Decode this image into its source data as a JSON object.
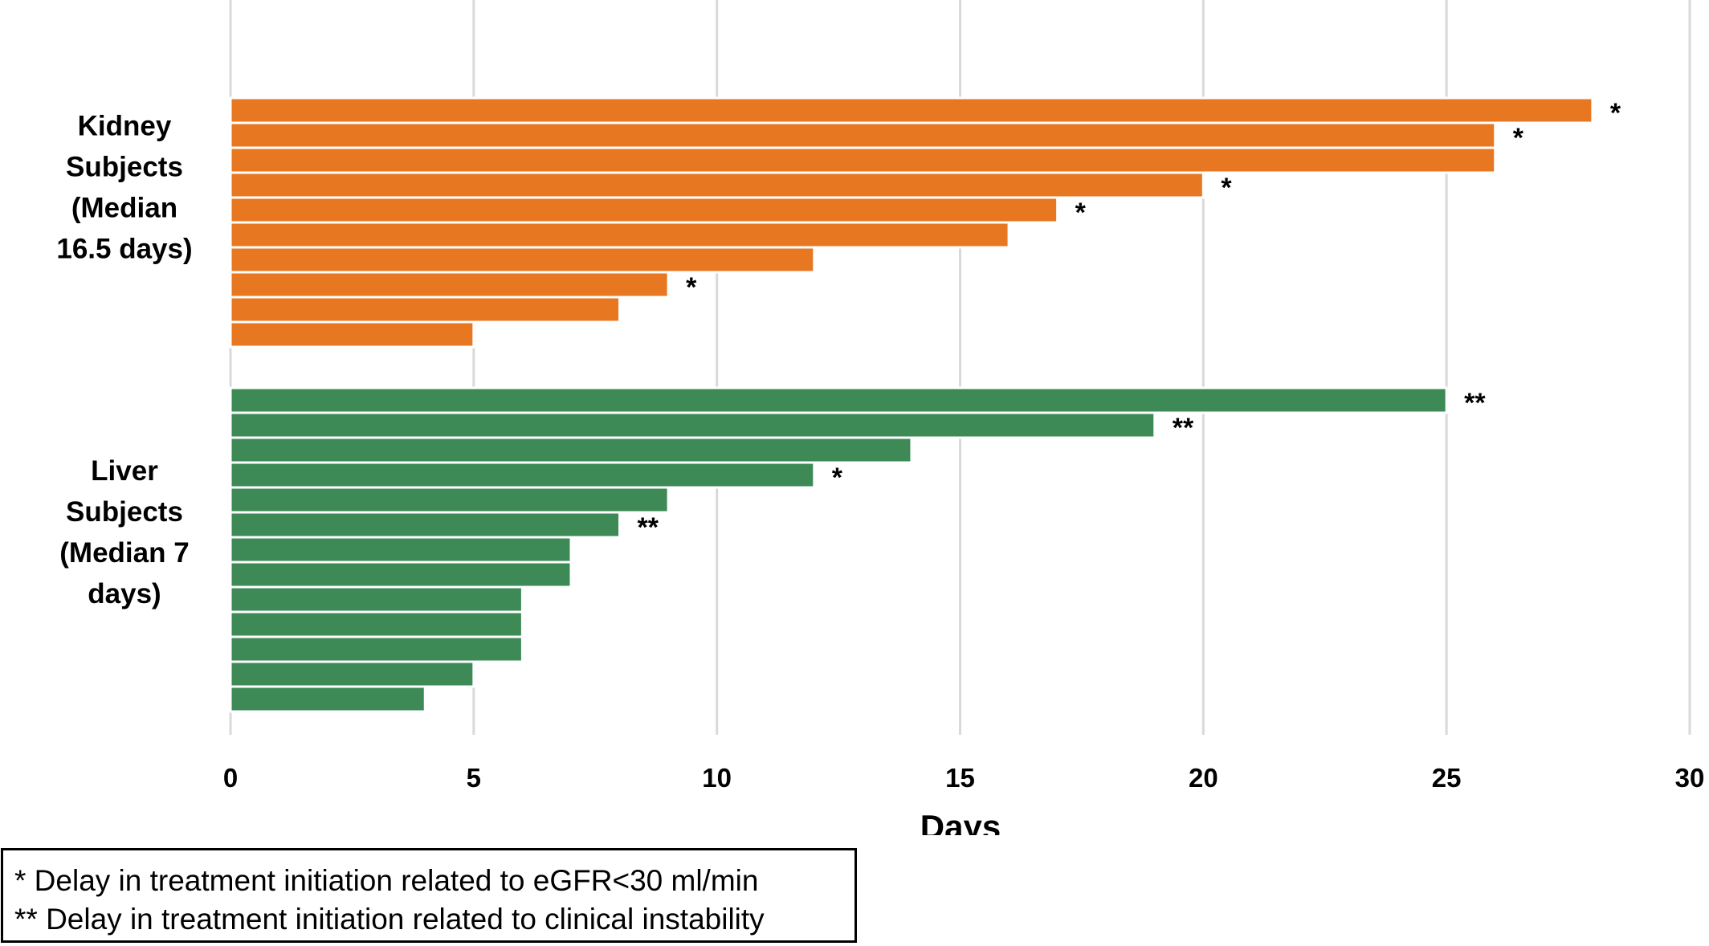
{
  "chart_data": {
    "type": "bar",
    "orientation": "horizontal",
    "xlabel": "Days",
    "xlim": [
      0,
      30
    ],
    "xticks": [
      0,
      5,
      10,
      15,
      20,
      25,
      30
    ],
    "grid": "vertical",
    "groups": [
      {
        "label_lines": [
          "Kidney",
          "Subjects",
          "(Median",
          "16.5 days)"
        ],
        "color": "#E87722",
        "values": [
          28,
          26,
          26,
          20,
          17,
          16,
          12,
          9,
          8,
          5
        ],
        "annotations": [
          "*",
          "*",
          "",
          "*",
          "*",
          "",
          "",
          "*",
          "",
          ""
        ]
      },
      {
        "label_lines": [
          "Liver",
          "Subjects",
          "(Median 7",
          "days)"
        ],
        "color": "#3D8A57",
        "values": [
          25,
          19,
          14,
          12,
          9,
          8,
          7,
          7,
          6,
          6,
          6,
          5,
          4
        ],
        "annotations": [
          "**",
          "**",
          "",
          "*",
          "",
          "**",
          "",
          "",
          "",
          "",
          "",
          "",
          ""
        ]
      }
    ]
  },
  "legend": {
    "line1": "* Delay in treatment initiation related to eGFR<30 ml/min",
    "line2": "** Delay in treatment initiation related to clinical instability"
  }
}
